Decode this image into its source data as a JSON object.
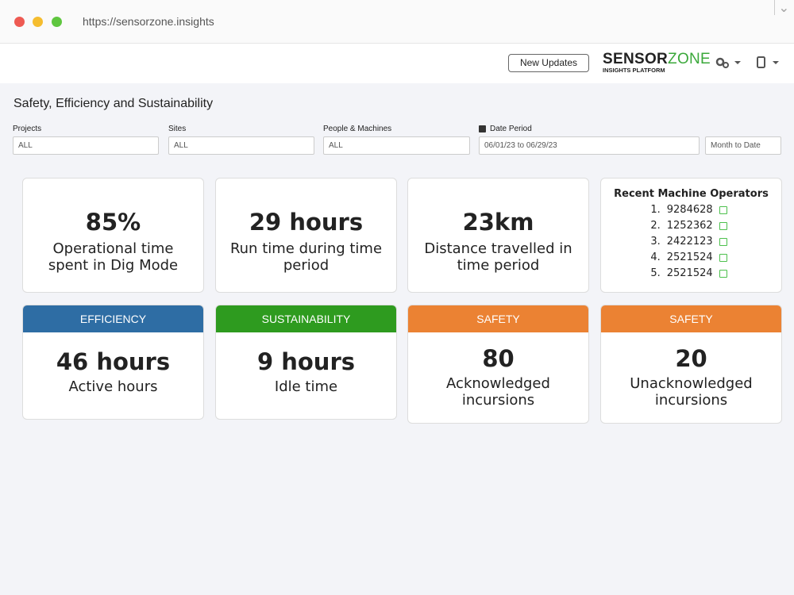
{
  "browser": {
    "url": "https://sensorzone.insights"
  },
  "header": {
    "button": "New Updates",
    "logo": {
      "part1": "SENSOR",
      "part2": "ZONE",
      "tagline": "INSIGHTS PLATFORM"
    }
  },
  "page": {
    "title": "Safety, Efficiency and Sustainability"
  },
  "filters": [
    {
      "label": "Projects",
      "value": "ALL"
    },
    {
      "label": "Sites",
      "value": "ALL"
    },
    {
      "label": "People & Machines",
      "value": "ALL"
    },
    {
      "label": "Date Period",
      "value": "06/01/23 to 06/29/23"
    }
  ],
  "period": "Month to Date",
  "stats": [
    {
      "value": "85%",
      "label": "Operational time spent in Dig Mode"
    },
    {
      "value": "29 hours",
      "label": "Run time during time period"
    },
    {
      "value": "23km",
      "label": "Distance travelled in time period"
    }
  ],
  "operators": {
    "title": "Recent Machine Operators",
    "items": [
      {
        "rank": "1.",
        "id": "9284628"
      },
      {
        "rank": "2.",
        "id": "1252362"
      },
      {
        "rank": "3.",
        "id": "2422123"
      },
      {
        "rank": "4.",
        "id": "2521524"
      },
      {
        "rank": "5.",
        "id": "2521524"
      }
    ]
  },
  "tagged": [
    {
      "tag": "EFFICIENCY",
      "value": "46 hours",
      "label": "Active hours"
    },
    {
      "tag": "SUSTAINABILITY",
      "value": "9 hours",
      "label": "Idle time"
    },
    {
      "tag": "SAFETY",
      "value": "80",
      "label": "Acknowledged incursions"
    },
    {
      "tag": "SAFETY",
      "value": "20",
      "label": "Unacknowledged incursions"
    }
  ]
}
